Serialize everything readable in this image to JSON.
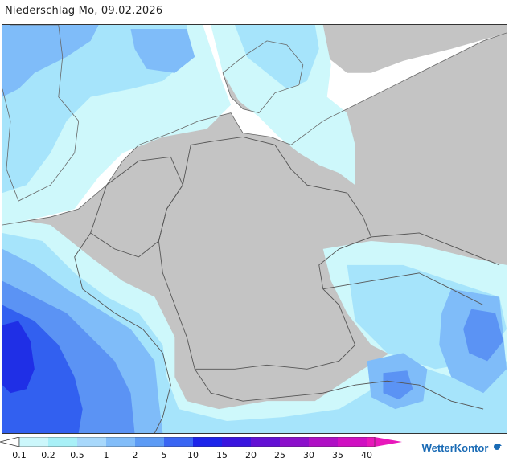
{
  "header": {
    "title": "Niederschlag Mo, 09.02.2026"
  },
  "legend": {
    "ticks": [
      "0.1",
      "0.2",
      "0.5",
      "1",
      "2",
      "5",
      "10",
      "15",
      "20",
      "25",
      "30",
      "35",
      "40"
    ],
    "colors": [
      "#ccf7fb",
      "#a8f0f7",
      "#a8d8fb",
      "#82bdf9",
      "#5c9bf5",
      "#3a66f3",
      "#1d24ea",
      "#3a15df",
      "#6310d4",
      "#8c10cb",
      "#b010c5",
      "#d010c2",
      "#e818bb"
    ]
  },
  "brand": {
    "name": "WetterKontor",
    "icon": "wetterkontor-logo-icon"
  },
  "map": {
    "land_color": "#c4c4c4",
    "sea_color": "#ffffff",
    "precip_colors": [
      "#cef8fb",
      "#a6e4fb",
      "#7fbcf9",
      "#5b93f4",
      "#3260f0",
      "#1f2fe6"
    ]
  }
}
